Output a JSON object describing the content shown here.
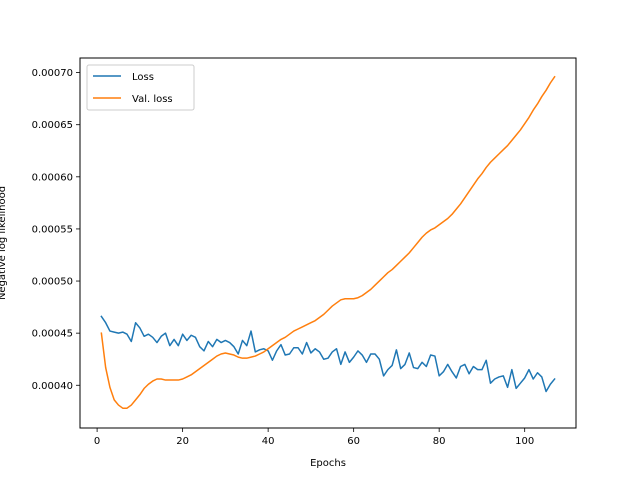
{
  "chart_data": {
    "type": "line",
    "title": "",
    "xlabel": "Epochs",
    "ylabel": "Negative log likelihood",
    "xlim": [
      -4,
      112
    ],
    "ylim": [
      0.000359,
      0.000714
    ],
    "xticks": [
      0,
      20,
      40,
      60,
      80,
      100
    ],
    "yticks": [
      0.0004,
      0.00045,
      0.0005,
      0.00055,
      0.0006,
      0.00065,
      0.0007
    ],
    "ytick_labels": [
      "0.00040",
      "0.00045",
      "0.00050",
      "0.00055",
      "0.00060",
      "0.00065",
      "0.00070"
    ],
    "grid": false,
    "legend_position": "top-left",
    "series": [
      {
        "name": "Loss",
        "color": "#1f77b4",
        "x": [
          1,
          2,
          3,
          4,
          5,
          6,
          7,
          8,
          9,
          10,
          11,
          12,
          13,
          14,
          15,
          16,
          17,
          18,
          19,
          20,
          21,
          22,
          23,
          24,
          25,
          26,
          27,
          28,
          29,
          30,
          31,
          32,
          33,
          34,
          35,
          36,
          37,
          38,
          39,
          40,
          41,
          42,
          43,
          44,
          45,
          46,
          47,
          48,
          49,
          50,
          51,
          52,
          53,
          54,
          55,
          56,
          57,
          58,
          59,
          60,
          61,
          62,
          63,
          64,
          65,
          66,
          67,
          68,
          69,
          70,
          71,
          72,
          73,
          74,
          75,
          76,
          77,
          78,
          79,
          80,
          81,
          82,
          83,
          84,
          85,
          86,
          87,
          88,
          89,
          90,
          91,
          92,
          93,
          94,
          95,
          96,
          97,
          98,
          99,
          100,
          101,
          102,
          103,
          104,
          105,
          106,
          107
        ],
        "values": [
          0.000466,
          0.00046,
          0.000452,
          0.000451,
          0.00045,
          0.000451,
          0.000449,
          0.000442,
          0.00046,
          0.000455,
          0.000447,
          0.000449,
          0.000446,
          0.000441,
          0.000447,
          0.00045,
          0.000438,
          0.000444,
          0.000438,
          0.000449,
          0.000443,
          0.000448,
          0.000446,
          0.000437,
          0.000433,
          0.000442,
          0.000437,
          0.000444,
          0.000441,
          0.000443,
          0.000441,
          0.000437,
          0.00043,
          0.000443,
          0.000438,
          0.000452,
          0.000432,
          0.000434,
          0.000435,
          0.000433,
          0.000424,
          0.000433,
          0.000439,
          0.000429,
          0.00043,
          0.000436,
          0.000436,
          0.00043,
          0.000441,
          0.000431,
          0.000435,
          0.000432,
          0.000425,
          0.000426,
          0.000432,
          0.000435,
          0.00042,
          0.000432,
          0.000422,
          0.000427,
          0.000433,
          0.000429,
          0.000422,
          0.00043,
          0.00043,
          0.000425,
          0.000409,
          0.000415,
          0.000419,
          0.000434,
          0.000416,
          0.00042,
          0.000431,
          0.000417,
          0.000416,
          0.000422,
          0.000418,
          0.000429,
          0.000428,
          0.000409,
          0.000413,
          0.00042,
          0.000413,
          0.000407,
          0.000418,
          0.00042,
          0.000411,
          0.000418,
          0.000415,
          0.000415,
          0.000424,
          0.000402,
          0.000406,
          0.000408,
          0.000409,
          0.000398,
          0.000415,
          0.000397,
          0.000402,
          0.000407,
          0.000415,
          0.000406,
          0.000412,
          0.000408,
          0.000394,
          0.000401,
          0.000406
        ]
      },
      {
        "name": "Val. loss",
        "color": "#ff7f0e",
        "x": [
          1,
          2,
          3,
          4,
          5,
          6,
          7,
          8,
          9,
          10,
          11,
          12,
          13,
          14,
          15,
          16,
          17,
          18,
          19,
          20,
          21,
          22,
          23,
          24,
          25,
          26,
          27,
          28,
          29,
          30,
          31,
          32,
          33,
          34,
          35,
          36,
          37,
          38,
          39,
          40,
          41,
          42,
          43,
          44,
          45,
          46,
          47,
          48,
          49,
          50,
          51,
          52,
          53,
          54,
          55,
          56,
          57,
          58,
          59,
          60,
          61,
          62,
          63,
          64,
          65,
          66,
          67,
          68,
          69,
          70,
          71,
          72,
          73,
          74,
          75,
          76,
          77,
          78,
          79,
          80,
          81,
          82,
          83,
          84,
          85,
          86,
          87,
          88,
          89,
          90,
          91,
          92,
          93,
          94,
          95,
          96,
          97,
          98,
          99,
          100,
          101,
          102,
          103,
          104,
          105,
          106,
          107
        ],
        "values": [
          0.00045,
          0.000417,
          0.000398,
          0.000386,
          0.000381,
          0.000378,
          0.000378,
          0.000381,
          0.000386,
          0.000391,
          0.000397,
          0.000401,
          0.000404,
          0.000406,
          0.000406,
          0.000405,
          0.000405,
          0.000405,
          0.000405,
          0.000406,
          0.000408,
          0.00041,
          0.000413,
          0.000416,
          0.000419,
          0.000422,
          0.000425,
          0.000428,
          0.00043,
          0.000431,
          0.00043,
          0.000429,
          0.000427,
          0.000426,
          0.000426,
          0.000427,
          0.000428,
          0.00043,
          0.000432,
          0.000435,
          0.000438,
          0.000441,
          0.000444,
          0.000446,
          0.000449,
          0.000452,
          0.000454,
          0.000456,
          0.000458,
          0.00046,
          0.000462,
          0.000465,
          0.000468,
          0.000472,
          0.000476,
          0.000479,
          0.000482,
          0.000483,
          0.000483,
          0.000483,
          0.000484,
          0.000486,
          0.000489,
          0.000492,
          0.000496,
          0.0005,
          0.000504,
          0.000508,
          0.000511,
          0.000515,
          0.000519,
          0.000523,
          0.000527,
          0.000532,
          0.000537,
          0.000542,
          0.000546,
          0.000549,
          0.000551,
          0.000554,
          0.000557,
          0.00056,
          0.000564,
          0.000569,
          0.000574,
          0.00058,
          0.000586,
          0.000592,
          0.000598,
          0.000603,
          0.000609,
          0.000614,
          0.000618,
          0.000622,
          0.000626,
          0.00063,
          0.000635,
          0.00064,
          0.000645,
          0.000651,
          0.000657,
          0.000664,
          0.00067,
          0.000677,
          0.000683,
          0.00069,
          0.000696
        ]
      }
    ]
  }
}
